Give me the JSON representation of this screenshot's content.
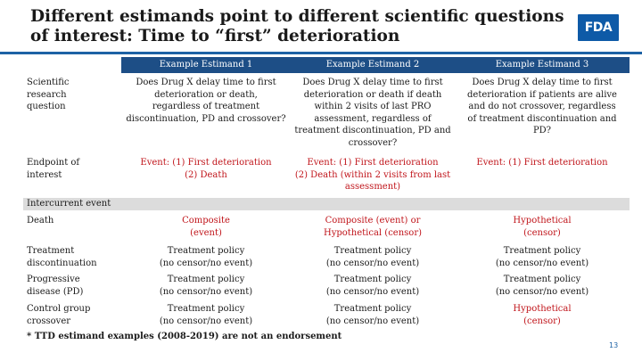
{
  "slide": {
    "title_line1": "Different estimands point to different scientific questions",
    "title_line2": "of interest: Time to “first” deterioration",
    "logo_text": "FDA",
    "footnote": "* TTD estimand examples (2008-2019) are not an endorsement",
    "page_number": "13"
  },
  "table": {
    "headers": [
      "Example Estimand 1",
      "Example Estimand 2",
      "Example Estimand 3"
    ],
    "rows": {
      "scientific_question": {
        "label": [
          "Scientific",
          "research",
          "question"
        ],
        "cells": [
          [
            "Does Drug X delay time to first",
            "deterioration or death,",
            "regardless of treatment",
            "discontinuation, PD and crossover?"
          ],
          [
            "Does Drug X delay time to first",
            "deterioration or death if death",
            "within 2 visits of last PRO",
            "assessment, regardless of",
            "treatment discontinuation, PD and",
            "crossover?"
          ],
          [
            "Does Drug X delay time to first",
            "deterioration if patients are alive",
            "and do not crossover, regardless",
            "of treatment discontinuation and",
            "PD?"
          ]
        ]
      },
      "endpoint": {
        "label": [
          "Endpoint of",
          "interest"
        ],
        "cells": [
          [
            "Event: (1) First deterioration",
            "(2) Death"
          ],
          [
            "Event: (1) First deterioration",
            "(2) Death (within 2 visits from last",
            "assessment)"
          ],
          [
            "Event: (1) First deterioration"
          ]
        ]
      },
      "section_label": "Intercurrent event",
      "death": {
        "label": [
          "Death"
        ],
        "cells": [
          [
            "Composite",
            "(event)"
          ],
          [
            "Composite (event) or",
            "Hypothetical (censor)"
          ],
          [
            "Hypothetical",
            "(censor)"
          ]
        ]
      },
      "treatment_discontinuation": {
        "label": [
          "Treatment",
          "discontinuation"
        ],
        "cells": [
          [
            "Treatment policy",
            "(no censor/no event)"
          ],
          [
            "Treatment policy",
            "(no censor/no event)"
          ],
          [
            "Treatment policy",
            "(no censor/no event)"
          ]
        ]
      },
      "progressive_disease": {
        "label": [
          "Progressive",
          "disease (PD)"
        ],
        "cells": [
          [
            "Treatment policy",
            "(no censor/no event)"
          ],
          [
            "Treatment policy",
            "(no censor/no event)"
          ],
          [
            "Treatment policy",
            "(no censor/no event)"
          ]
        ]
      },
      "control_crossover": {
        "label": [
          "Control group",
          "crossover"
        ],
        "cells": [
          [
            "Treatment policy",
            "(no censor/no event)"
          ],
          [
            "Treatment policy",
            "(no censor/no event)"
          ],
          [
            "Hypothetical",
            "(censor)"
          ]
        ]
      }
    }
  },
  "colors": {
    "header_bg": "#1d4e86",
    "accent_red": "#c0141a",
    "section_bg": "#dcdcdc",
    "logo_bg": "#0e5aa7"
  }
}
